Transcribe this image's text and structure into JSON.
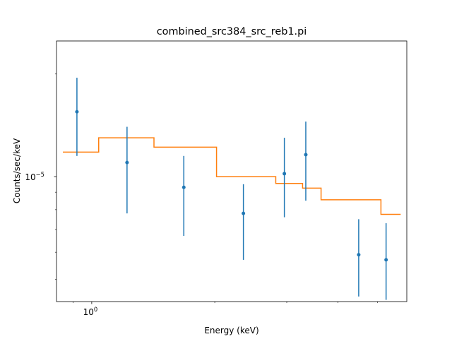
{
  "chart_data": {
    "type": "scatter",
    "title": "combined_src384_src_reb1.pi",
    "xlabel": "Energy (keV)",
    "ylabel": "Counts/sec/keV",
    "x_scale": "log",
    "y_scale": "log",
    "xlim": [
      0.82,
      5.9
    ],
    "ylim": [
      4.3e-06,
      2.5e-05
    ],
    "x_tick_labels": [
      {
        "value": 1.0,
        "label": "10^0"
      }
    ],
    "y_tick_labels": [
      {
        "value": 1e-05,
        "label": "10^−5"
      }
    ],
    "legend": "none",
    "grid": false,
    "colors": {
      "data": "#1f77b4",
      "model": "#ff7f0e"
    },
    "series": [
      {
        "kind": "errorbar",
        "x": [
          0.92,
          1.22,
          1.68,
          2.35,
          2.96,
          3.34,
          4.5,
          5.25
        ],
        "y": [
          1.55e-05,
          1.1e-05,
          9.3e-06,
          7.8e-06,
          1.02e-05,
          1.16e-05,
          5.9e-06,
          5.7e-06
        ],
        "yerr_low": [
          1.15e-05,
          7.8e-06,
          6.7e-06,
          5.7e-06,
          7.6e-06,
          8.5e-06,
          4.45e-06,
          4.35e-06
        ],
        "yerr_high": [
          1.95e-05,
          1.4e-05,
          1.15e-05,
          9.5e-06,
          1.3e-05,
          1.45e-05,
          7.5e-06,
          7.3e-06
        ]
      },
      {
        "kind": "step",
        "x_edges": [
          0.85,
          1.04,
          1.42,
          2.02,
          2.82,
          3.28,
          3.64,
          5.1,
          5.7
        ],
        "y": [
          1.18e-05,
          1.3e-05,
          1.22e-05,
          1e-05,
          9.55e-06,
          9.25e-06,
          8.55e-06,
          7.75e-06
        ]
      }
    ]
  }
}
